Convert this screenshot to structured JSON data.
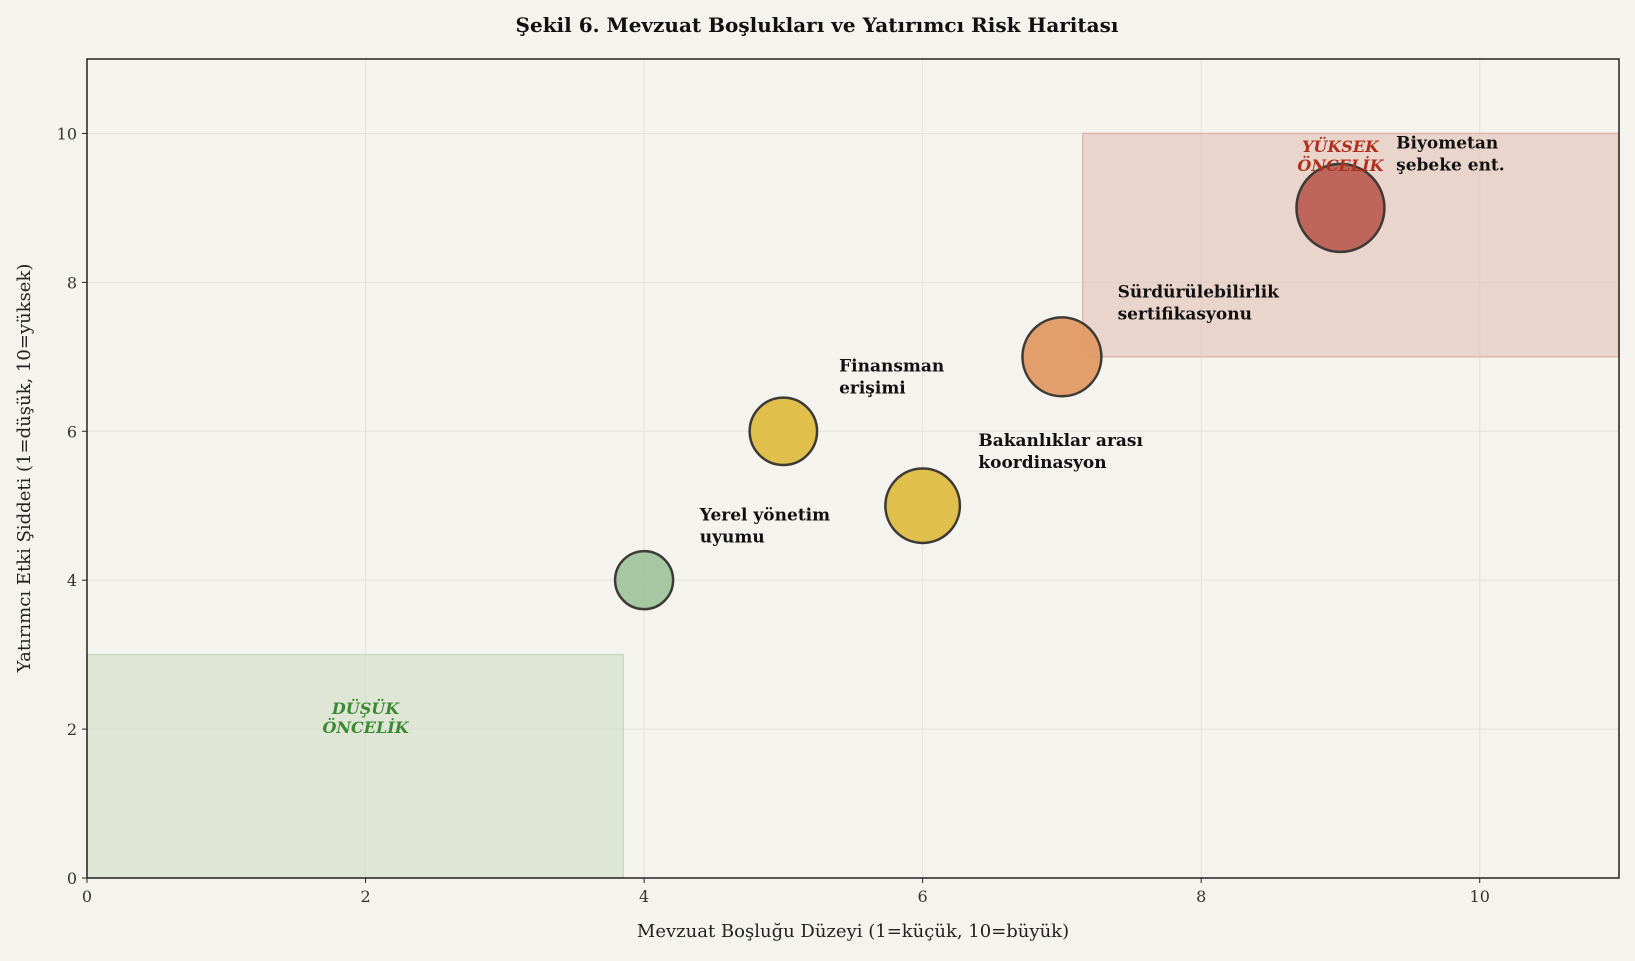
{
  "chart_data": {
    "type": "scatter",
    "title": "Şekil 6. Mevzuat Boşlukları ve Yatırımcı Risk Haritası",
    "xlabel": "Mevzuat Boşluğu Düzeyi (1=küçük, 10=büyük)",
    "ylabel": "Yatırımcı Etki Şiddeti (1=düşük, 10=yüksek)",
    "xlim": [
      0,
      11
    ],
    "ylim": [
      0,
      11
    ],
    "xticks": [
      0,
      2,
      4,
      6,
      8,
      10
    ],
    "yticks": [
      0,
      2,
      4,
      6,
      8,
      10
    ],
    "grid": true,
    "points": [
      {
        "label": [
          "Yerel yönetim",
          "uyumu"
        ],
        "x": 4,
        "y": 4,
        "size": 1,
        "color": "#a0c49d"
      },
      {
        "label": [
          "Finansman",
          "erişimi"
        ],
        "x": 5,
        "y": 6,
        "size": 1.35,
        "color": "#dfbc44"
      },
      {
        "label": [
          "Bakanlıklar arası",
          "koordinasyon"
        ],
        "x": 6,
        "y": 5,
        "size": 1.65,
        "color": "#dfbc44"
      },
      {
        "label": [
          "Sürdürülebilirlik",
          "sertifikasyonu"
        ],
        "x": 7,
        "y": 7,
        "size": 1.85,
        "color": "#e09a64"
      },
      {
        "label": [
          "Biyometan",
          "şebeke ent."
        ],
        "x": 9,
        "y": 9,
        "size": 2.3,
        "color": "#bc5f55"
      }
    ],
    "regions": [
      {
        "label": [
          "YÜKSEK",
          "ÖNCELİK"
        ],
        "x": [
          7.15,
          11
        ],
        "y": [
          7,
          10
        ],
        "fill": "#e0b8ab",
        "text_color": "#b0301f",
        "label_at": [
          9,
          9.75
        ]
      },
      {
        "label": [
          "DÜŞÜK",
          "ÖNCELİK"
        ],
        "x": [
          0,
          3.85
        ],
        "y": [
          0,
          3
        ],
        "fill": "#c9d9c0",
        "text_color": "#3a8a32",
        "label_at": [
          2,
          2.2
        ]
      }
    ]
  }
}
